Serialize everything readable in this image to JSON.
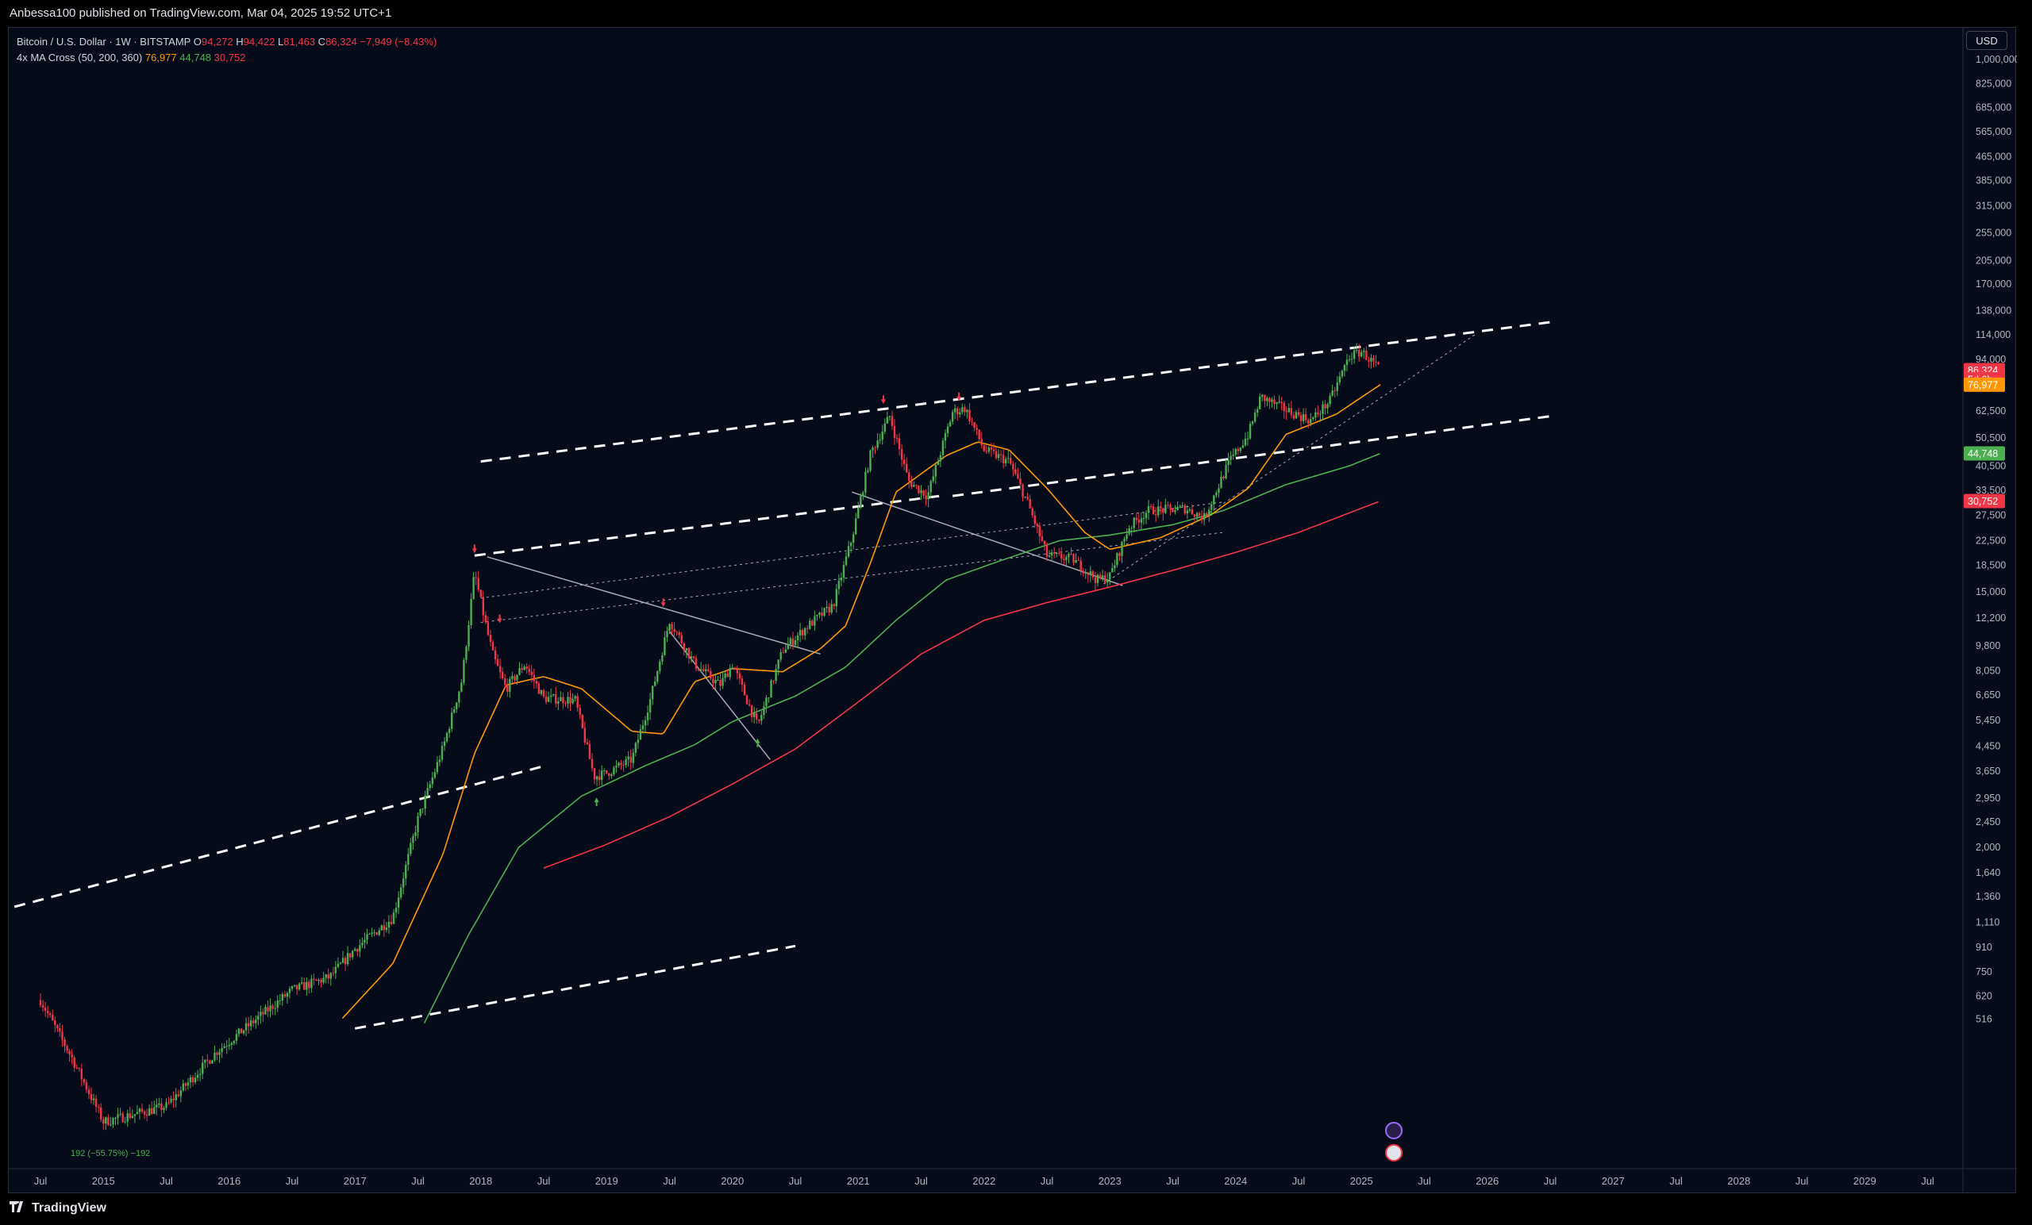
{
  "header": {
    "publisher": "Anbessa100 published on TradingView.com, Mar 04, 2025 19:52 UTC+1"
  },
  "legend": {
    "symbol": "Bitcoin / U.S. Dollar · 1W · BITSTAMP",
    "open_label": "O",
    "open": "94,272",
    "high_label": "H",
    "high": "94,422",
    "low_label": "L",
    "low": "81,463",
    "close_label": "C",
    "close": "86,324",
    "change": "−7,949 (−8.43%)",
    "indicator": "4x MA Cross (50, 200, 360)",
    "ma50": "76,977",
    "ma200": "44,748",
    "ma360": "30,752"
  },
  "currency_button": "USD",
  "footer": {
    "brand": "TradingView"
  },
  "colors": {
    "background": "#060b1a",
    "up": "#4caf50",
    "down": "#f23645",
    "ma50": "#ff9800",
    "ma200": "#4caf50",
    "ma360": "#f23645",
    "trendline": "#ffffff"
  },
  "chart_data": {
    "type": "candlestick",
    "scale": "log",
    "x_ticks": [
      "Jul",
      "2015",
      "Jul",
      "2016",
      "Jul",
      "2017",
      "Jul",
      "2018",
      "Jul",
      "2019",
      "Jul",
      "2020",
      "Jul",
      "2021",
      "Jul",
      "2022",
      "Jul",
      "2023",
      "Jul",
      "2024",
      "Jul",
      "2025",
      "Jul",
      "2026",
      "Jul",
      "2027",
      "Jul",
      "2028",
      "Jul",
      "2029",
      "Jul"
    ],
    "y_ticks": [
      "1,000,000",
      "825,000",
      "685,000",
      "565,000",
      "465,000",
      "385,000",
      "315,000",
      "255,000",
      "205,000",
      "170,000",
      "138,000",
      "114,000",
      "94,000",
      "62,500",
      "50,500",
      "40,500",
      "33,500",
      "27,500",
      "22,500",
      "18,500",
      "15,000",
      "12,200",
      "9,800",
      "8,050",
      "6,650",
      "5,450",
      "4,450",
      "3,650",
      "2,950",
      "2,450",
      "2,000",
      "1,640",
      "1,360",
      "1,110",
      "910",
      "750",
      "620",
      "516"
    ],
    "price_badges": [
      {
        "label": "86,324",
        "color": "#f23645"
      },
      {
        "label": "5d 6h",
        "color": "#f23645"
      },
      {
        "label": "76,977",
        "color": "#ff9800"
      },
      {
        "label": "44,748",
        "color": "#4caf50"
      },
      {
        "label": "30,752",
        "color": "#f23645"
      }
    ],
    "price_path": [
      [
        2014.5,
        600
      ],
      [
        2014.75,
        380
      ],
      [
        2015.0,
        230
      ],
      [
        2015.5,
        260
      ],
      [
        2015.9,
        400
      ],
      [
        2016.5,
        650
      ],
      [
        2016.8,
        720
      ],
      [
        2017.0,
        900
      ],
      [
        2017.3,
        1150
      ],
      [
        2017.5,
        2500
      ],
      [
        2017.7,
        4400
      ],
      [
        2017.85,
        7500
      ],
      [
        2017.95,
        17500
      ],
      [
        2018.05,
        11000
      ],
      [
        2018.1,
        9000
      ],
      [
        2018.2,
        7000
      ],
      [
        2018.35,
        8500
      ],
      [
        2018.5,
        6500
      ],
      [
        2018.75,
        6400
      ],
      [
        2018.9,
        3500
      ],
      [
        2019.0,
        3600
      ],
      [
        2019.2,
        4000
      ],
      [
        2019.35,
        6500
      ],
      [
        2019.5,
        12000
      ],
      [
        2019.7,
        8500
      ],
      [
        2019.9,
        7200
      ],
      [
        2020.0,
        8500
      ],
      [
        2020.2,
        5200
      ],
      [
        2020.4,
        9500
      ],
      [
        2020.6,
        11500
      ],
      [
        2020.8,
        13500
      ],
      [
        2020.95,
        23000
      ],
      [
        2021.1,
        45000
      ],
      [
        2021.25,
        60000
      ],
      [
        2021.4,
        36000
      ],
      [
        2021.55,
        32000
      ],
      [
        2021.75,
        62000
      ],
      [
        2021.85,
        64000
      ],
      [
        2022.0,
        46000
      ],
      [
        2022.2,
        42000
      ],
      [
        2022.35,
        30000
      ],
      [
        2022.5,
        20000
      ],
      [
        2022.7,
        19500
      ],
      [
        2022.9,
        16500
      ],
      [
        2023.0,
        17000
      ],
      [
        2023.15,
        25000
      ],
      [
        2023.3,
        28500
      ],
      [
        2023.6,
        29000
      ],
      [
        2023.75,
        27000
      ],
      [
        2023.95,
        42000
      ],
      [
        2024.1,
        52000
      ],
      [
        2024.2,
        70000
      ],
      [
        2024.4,
        63000
      ],
      [
        2024.6,
        58000
      ],
      [
        2024.75,
        68000
      ],
      [
        2024.9,
        96000
      ],
      [
        2025.0,
        100000
      ],
      [
        2025.15,
        86324
      ]
    ],
    "ma50_path": [
      [
        2016.9,
        520
      ],
      [
        2017.3,
        800
      ],
      [
        2017.7,
        1900
      ],
      [
        2017.95,
        4200
      ],
      [
        2018.2,
        7200
      ],
      [
        2018.5,
        7700
      ],
      [
        2018.8,
        7000
      ],
      [
        2019.2,
        5000
      ],
      [
        2019.45,
        4900
      ],
      [
        2019.7,
        7400
      ],
      [
        2020.0,
        8200
      ],
      [
        2020.4,
        8000
      ],
      [
        2020.7,
        9600
      ],
      [
        2020.9,
        11500
      ],
      [
        2021.1,
        19000
      ],
      [
        2021.3,
        33000
      ],
      [
        2021.7,
        44000
      ],
      [
        2021.95,
        49000
      ],
      [
        2022.2,
        46000
      ],
      [
        2022.5,
        34000
      ],
      [
        2022.8,
        24000
      ],
      [
        2023.0,
        21000
      ],
      [
        2023.4,
        23000
      ],
      [
        2023.8,
        27500
      ],
      [
        2024.1,
        34000
      ],
      [
        2024.4,
        52000
      ],
      [
        2024.8,
        61000
      ],
      [
        2025.15,
        76977
      ]
    ],
    "ma200_path": [
      [
        2017.55,
        500
      ],
      [
        2017.9,
        1000
      ],
      [
        2018.3,
        2000
      ],
      [
        2018.8,
        3000
      ],
      [
        2019.3,
        3800
      ],
      [
        2019.7,
        4500
      ],
      [
        2020.0,
        5400
      ],
      [
        2020.5,
        6600
      ],
      [
        2020.9,
        8300
      ],
      [
        2021.3,
        12000
      ],
      [
        2021.7,
        16500
      ],
      [
        2022.1,
        19000
      ],
      [
        2022.6,
        22500
      ],
      [
        2023.0,
        23500
      ],
      [
        2023.5,
        25500
      ],
      [
        2023.9,
        28500
      ],
      [
        2024.4,
        35000
      ],
      [
        2024.9,
        40500
      ],
      [
        2025.15,
        44748
      ]
    ],
    "ma360_path": [
      [
        2018.5,
        1700
      ],
      [
        2019.0,
        2050
      ],
      [
        2019.5,
        2550
      ],
      [
        2020.0,
        3300
      ],
      [
        2020.5,
        4350
      ],
      [
        2021.0,
        6300
      ],
      [
        2021.5,
        9200
      ],
      [
        2022.0,
        12000
      ],
      [
        2022.5,
        13800
      ],
      [
        2023.0,
        15600
      ],
      [
        2023.5,
        17800
      ],
      [
        2024.0,
        20500
      ],
      [
        2024.5,
        24000
      ],
      [
        2025.15,
        30752
      ]
    ],
    "channel_lines": [
      {
        "from": [
          2014.0,
          1160
        ],
        "to": [
          2018.5,
          3800
        ],
        "style": "dashed-bold",
        "note": "lower support"
      },
      {
        "from": [
          2017.95,
          20000
        ],
        "to": [
          2021.65,
          32000
        ],
        "style": "dashed-bold"
      },
      {
        "from": [
          2018.0,
          42000
        ],
        "to": [
          2026.5,
          126000
        ],
        "style": "dashed-bold"
      },
      {
        "from": [
          2021.75,
          32000
        ],
        "to": [
          2026.5,
          60000
        ],
        "style": "dashed-bold"
      },
      {
        "from": [
          2017.0,
          480
        ],
        "to": [
          2020.5,
          920
        ],
        "style": "dashed-bold"
      }
    ],
    "thin_lines": [
      {
        "from": [
          2018.05,
          19800
        ],
        "to": [
          2020.7,
          9200
        ],
        "style": "solid"
      },
      {
        "from": [
          2020.95,
          33000
        ],
        "to": [
          2023.1,
          15800
        ],
        "style": "solid"
      },
      {
        "from": [
          2019.5,
          11000
        ],
        "to": [
          2020.3,
          4000
        ],
        "style": "solid"
      },
      {
        "from": [
          2022.95,
          16000
        ],
        "to": [
          2025.9,
          114000
        ],
        "style": "dotted"
      },
      {
        "from": [
          2018.0,
          14300
        ],
        "to": [
          2023.9,
          30500
        ],
        "style": "dotted"
      },
      {
        "from": [
          2018.0,
          11800
        ],
        "to": [
          2023.9,
          24000
        ],
        "style": "dotted"
      }
    ],
    "markers": [
      {
        "x": 2017.95,
        "y": 20500,
        "dir": "down"
      },
      {
        "x": 2018.15,
        "y": 11800,
        "dir": "down"
      },
      {
        "x": 2019.45,
        "y": 13400,
        "dir": "down"
      },
      {
        "x": 2021.2,
        "y": 66500,
        "dir": "down"
      },
      {
        "x": 2021.8,
        "y": 68000,
        "dir": "down"
      },
      {
        "x": 2018.92,
        "y": 2950,
        "dir": "up"
      },
      {
        "x": 2020.2,
        "y": 4700,
        "dir": "up"
      }
    ],
    "annotation": "192 (−55.75%) −192"
  }
}
